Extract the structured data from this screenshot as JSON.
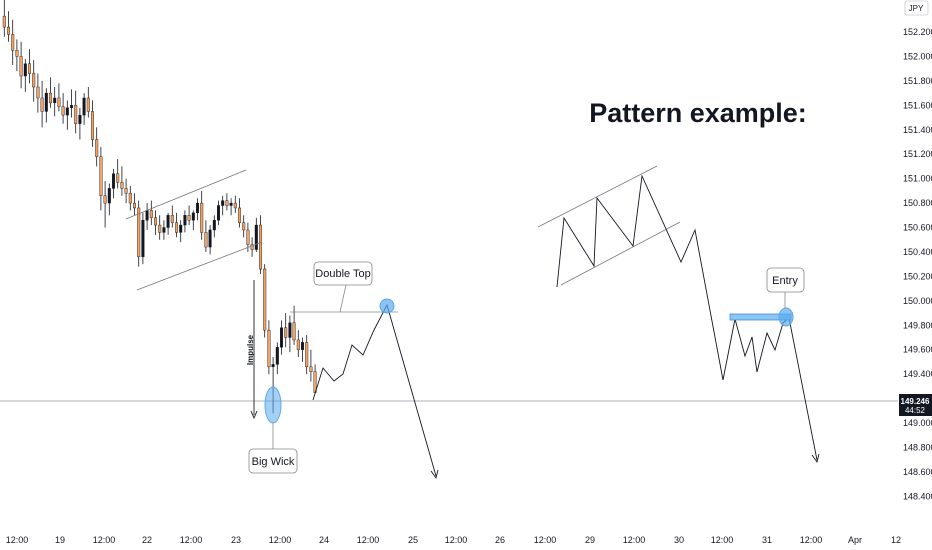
{
  "chart_data": {
    "type": "candlestick",
    "symbol_badge": "JPY",
    "title": "Pattern example:",
    "ylim": [
      148.23,
      152.47
    ],
    "y_ticks": [
      "152.200",
      "152.000",
      "151.800",
      "151.600",
      "151.400",
      "151.200",
      "151.000",
      "150.800",
      "150.600",
      "150.400",
      "150.200",
      "150.000",
      "149.800",
      "149.600",
      "149.400",
      "149.200",
      "149.000",
      "148.800",
      "148.600",
      "148.400"
    ],
    "x_ticks": [
      {
        "label": "12:00",
        "px": 17
      },
      {
        "label": "19",
        "px": 60
      },
      {
        "label": "12:00",
        "px": 104
      },
      {
        "label": "22",
        "px": 147
      },
      {
        "label": "12:00",
        "px": 191
      },
      {
        "label": "23",
        "px": 236
      },
      {
        "label": "12:00",
        "px": 280
      },
      {
        "label": "24",
        "px": 324
      },
      {
        "label": "12:00",
        "px": 368
      },
      {
        "label": "25",
        "px": 413
      },
      {
        "label": "12:00",
        "px": 456
      },
      {
        "label": "26",
        "px": 500
      },
      {
        "label": "12:00",
        "px": 545
      },
      {
        "label": "29",
        "px": 590
      },
      {
        "label": "12:00",
        "px": 634
      },
      {
        "label": "30",
        "px": 679
      },
      {
        "label": "12:00",
        "px": 722
      },
      {
        "label": "31",
        "px": 767
      },
      {
        "label": "12:00",
        "px": 811
      },
      {
        "label": "Apr",
        "px": 855
      },
      {
        "label": "12",
        "px": 896
      }
    ],
    "current_price": {
      "value": "149.246",
      "countdown": "44:52",
      "level": 149.246
    },
    "colors": {
      "up": "#131722",
      "down": "#f2a161",
      "neutral_line": "#131722",
      "highlight": "#5aa9ec",
      "price_tag": "#131722"
    },
    "candles": [
      {
        "o": 152.33,
        "h": 152.47,
        "l": 152.16,
        "c": 152.24
      },
      {
        "o": 152.24,
        "h": 152.37,
        "l": 152.12,
        "c": 152.18
      },
      {
        "o": 152.18,
        "h": 152.3,
        "l": 151.93,
        "c": 152.05
      },
      {
        "o": 152.05,
        "h": 152.14,
        "l": 151.88,
        "c": 152.0
      },
      {
        "o": 152.0,
        "h": 152.12,
        "l": 151.74,
        "c": 151.84
      },
      {
        "o": 151.84,
        "h": 151.98,
        "l": 151.71,
        "c": 151.94
      },
      {
        "o": 151.94,
        "h": 152.06,
        "l": 151.78,
        "c": 151.86
      },
      {
        "o": 151.86,
        "h": 151.97,
        "l": 151.63,
        "c": 151.75
      },
      {
        "o": 151.75,
        "h": 151.86,
        "l": 151.54,
        "c": 151.66
      },
      {
        "o": 151.66,
        "h": 151.8,
        "l": 151.42,
        "c": 151.55
      },
      {
        "o": 151.55,
        "h": 151.74,
        "l": 151.46,
        "c": 151.7
      },
      {
        "o": 151.7,
        "h": 151.83,
        "l": 151.58,
        "c": 151.62
      },
      {
        "o": 151.62,
        "h": 151.75,
        "l": 151.51,
        "c": 151.66
      },
      {
        "o": 151.66,
        "h": 151.78,
        "l": 151.55,
        "c": 151.59
      },
      {
        "o": 151.59,
        "h": 151.7,
        "l": 151.45,
        "c": 151.52
      },
      {
        "o": 151.52,
        "h": 151.64,
        "l": 151.4,
        "c": 151.58
      },
      {
        "o": 151.58,
        "h": 151.73,
        "l": 151.5,
        "c": 151.6
      },
      {
        "o": 151.6,
        "h": 151.72,
        "l": 151.37,
        "c": 151.45
      },
      {
        "o": 151.45,
        "h": 151.58,
        "l": 151.32,
        "c": 151.52
      },
      {
        "o": 151.52,
        "h": 151.7,
        "l": 151.44,
        "c": 151.66
      },
      {
        "o": 151.66,
        "h": 151.75,
        "l": 151.5,
        "c": 151.55
      },
      {
        "o": 151.55,
        "h": 151.64,
        "l": 151.26,
        "c": 151.32
      },
      {
        "o": 151.32,
        "h": 151.42,
        "l": 151.1,
        "c": 151.18
      },
      {
        "o": 151.18,
        "h": 151.26,
        "l": 150.74,
        "c": 150.86
      },
      {
        "o": 150.86,
        "h": 150.98,
        "l": 150.6,
        "c": 150.8
      },
      {
        "o": 150.8,
        "h": 150.96,
        "l": 150.7,
        "c": 150.92
      },
      {
        "o": 150.92,
        "h": 151.08,
        "l": 150.84,
        "c": 151.04
      },
      {
        "o": 151.04,
        "h": 151.16,
        "l": 150.92,
        "c": 150.97
      },
      {
        "o": 150.97,
        "h": 151.1,
        "l": 150.86,
        "c": 150.92
      },
      {
        "o": 150.92,
        "h": 151.0,
        "l": 150.8,
        "c": 150.88
      },
      {
        "o": 150.88,
        "h": 150.94,
        "l": 150.74,
        "c": 150.8
      },
      {
        "o": 150.8,
        "h": 150.88,
        "l": 150.7,
        "c": 150.76
      },
      {
        "o": 150.76,
        "h": 150.82,
        "l": 150.28,
        "c": 150.36
      },
      {
        "o": 150.36,
        "h": 150.72,
        "l": 150.3,
        "c": 150.66
      },
      {
        "o": 150.66,
        "h": 150.8,
        "l": 150.58,
        "c": 150.74
      },
      {
        "o": 150.74,
        "h": 150.82,
        "l": 150.62,
        "c": 150.68
      },
      {
        "o": 150.68,
        "h": 150.74,
        "l": 150.54,
        "c": 150.62
      },
      {
        "o": 150.62,
        "h": 150.7,
        "l": 150.5,
        "c": 150.56
      },
      {
        "o": 150.56,
        "h": 150.66,
        "l": 150.5,
        "c": 150.6
      },
      {
        "o": 150.6,
        "h": 150.72,
        "l": 150.54,
        "c": 150.7
      },
      {
        "o": 150.7,
        "h": 150.78,
        "l": 150.6,
        "c": 150.64
      },
      {
        "o": 150.64,
        "h": 150.72,
        "l": 150.52,
        "c": 150.56
      },
      {
        "o": 150.56,
        "h": 150.66,
        "l": 150.48,
        "c": 150.62
      },
      {
        "o": 150.62,
        "h": 150.74,
        "l": 150.56,
        "c": 150.7
      },
      {
        "o": 150.7,
        "h": 150.78,
        "l": 150.62,
        "c": 150.66
      },
      {
        "o": 150.66,
        "h": 150.74,
        "l": 150.58,
        "c": 150.72
      },
      {
        "o": 150.72,
        "h": 150.84,
        "l": 150.66,
        "c": 150.8
      },
      {
        "o": 150.8,
        "h": 150.9,
        "l": 150.5,
        "c": 150.56
      },
      {
        "o": 150.56,
        "h": 150.66,
        "l": 150.4,
        "c": 150.44
      },
      {
        "o": 150.44,
        "h": 150.62,
        "l": 150.38,
        "c": 150.58
      },
      {
        "o": 150.58,
        "h": 150.7,
        "l": 150.52,
        "c": 150.66
      },
      {
        "o": 150.66,
        "h": 150.82,
        "l": 150.62,
        "c": 150.78
      },
      {
        "o": 150.78,
        "h": 150.86,
        "l": 150.7,
        "c": 150.82
      },
      {
        "o": 150.82,
        "h": 150.88,
        "l": 150.74,
        "c": 150.78
      },
      {
        "o": 150.78,
        "h": 150.84,
        "l": 150.7,
        "c": 150.8
      },
      {
        "o": 150.8,
        "h": 150.86,
        "l": 150.72,
        "c": 150.76
      },
      {
        "o": 150.76,
        "h": 150.84,
        "l": 150.6,
        "c": 150.64
      },
      {
        "o": 150.64,
        "h": 150.7,
        "l": 150.52,
        "c": 150.58
      },
      {
        "o": 150.58,
        "h": 150.64,
        "l": 150.4,
        "c": 150.46
      },
      {
        "o": 150.46,
        "h": 150.52,
        "l": 150.36,
        "c": 150.42
      },
      {
        "o": 150.42,
        "h": 150.68,
        "l": 150.4,
        "c": 150.62
      },
      {
        "o": 150.62,
        "h": 150.7,
        "l": 150.22,
        "c": 150.26
      },
      {
        "o": 150.26,
        "h": 150.3,
        "l": 149.7,
        "c": 149.76
      },
      {
        "o": 149.76,
        "h": 149.84,
        "l": 149.4,
        "c": 149.46
      },
      {
        "o": 149.46,
        "h": 149.54,
        "l": 149.08,
        "c": 149.48
      },
      {
        "o": 149.48,
        "h": 149.66,
        "l": 149.4,
        "c": 149.62
      },
      {
        "o": 149.62,
        "h": 149.84,
        "l": 149.56,
        "c": 149.78
      },
      {
        "o": 149.78,
        "h": 149.9,
        "l": 149.62,
        "c": 149.7
      },
      {
        "o": 149.7,
        "h": 149.88,
        "l": 149.58,
        "c": 149.82
      },
      {
        "o": 149.82,
        "h": 149.96,
        "l": 149.64,
        "c": 149.68
      },
      {
        "o": 149.68,
        "h": 149.76,
        "l": 149.54,
        "c": 149.6
      },
      {
        "o": 149.6,
        "h": 149.7,
        "l": 149.5,
        "c": 149.66
      },
      {
        "o": 149.66,
        "h": 149.72,
        "l": 149.4,
        "c": 149.46
      },
      {
        "o": 149.46,
        "h": 149.6,
        "l": 149.34,
        "c": 149.42
      },
      {
        "o": 149.42,
        "h": 149.48,
        "l": 149.24,
        "c": 149.25
      }
    ],
    "annotations": {
      "impulse": "Impulse",
      "big_wick": "Big Wick",
      "double_top": "Double Top",
      "entry": "Entry"
    }
  }
}
